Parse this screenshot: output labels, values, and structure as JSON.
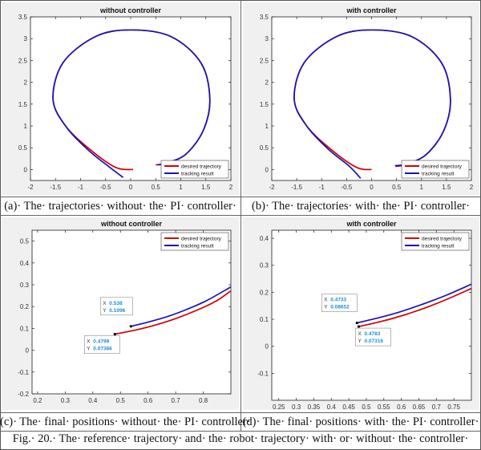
{
  "colors": {
    "desired": "#d40000",
    "tracking": "#1515b8",
    "datatip_value": "#1e8fd6",
    "axes_bg": "#ffffff",
    "figure_bg": "#f0f0f0"
  },
  "chart_data": [
    {
      "type": "line",
      "title": "without controller",
      "xlabel": "",
      "ylabel": "",
      "xlim": [
        -2,
        2
      ],
      "ylim": [
        -0.25,
        3.5
      ],
      "xticks": [
        "-2",
        "-1.5",
        "-1",
        "-0.5",
        "0",
        "0.5",
        "1",
        "1.5",
        "2"
      ],
      "yticks": [
        "0",
        "0.5",
        "1",
        "1.5",
        "2",
        "2.5",
        "3",
        "3.5"
      ],
      "grid": false,
      "legend": "bottom-right",
      "series": [
        {
          "name": "desired trajectory",
          "color": "#d40000",
          "x": [
            0.048,
            -0.3,
            -0.8,
            -1.3,
            -1.55,
            -1.35,
            -0.7,
            0.0,
            0.8,
            1.4,
            1.58,
            1.45,
            1.1,
            0.7,
            0.5
          ],
          "y": [
            0.0,
            0.05,
            0.45,
            1.0,
            1.62,
            2.45,
            3.05,
            3.2,
            3.05,
            2.45,
            1.62,
            0.9,
            0.35,
            0.14,
            0.11
          ]
        },
        {
          "name": "tracking result",
          "color": "#1515b8",
          "x": [
            -0.15,
            -0.45,
            -0.85,
            -1.3,
            -1.55,
            -1.35,
            -0.7,
            0.0,
            0.8,
            1.4,
            1.58,
            1.45,
            1.1,
            0.7,
            0.54
          ],
          "y": [
            -0.18,
            0.08,
            0.45,
            1.0,
            1.62,
            2.45,
            3.05,
            3.2,
            3.05,
            2.45,
            1.62,
            0.9,
            0.35,
            0.15,
            0.11
          ]
        }
      ]
    },
    {
      "type": "line",
      "title": "with controller",
      "xlabel": "",
      "ylabel": "",
      "xlim": [
        -2,
        2
      ],
      "ylim": [
        -0.25,
        3.5
      ],
      "xticks": [
        "-2",
        "-1.5",
        "-1",
        "-0.5",
        "0",
        "0.5",
        "1",
        "1.5",
        "2"
      ],
      "yticks": [
        "0",
        "0.5",
        "1",
        "1.5",
        "2",
        "2.5",
        "3",
        "3.5"
      ],
      "grid": false,
      "legend": "bottom-right",
      "series": [
        {
          "name": "desired trajectory",
          "color": "#d40000",
          "x": [
            0.0,
            -0.3,
            -0.8,
            -1.3,
            -1.55,
            -1.35,
            -0.7,
            0.0,
            0.8,
            1.4,
            1.58,
            1.45,
            1.1,
            0.7,
            0.48
          ],
          "y": [
            0.0,
            0.05,
            0.45,
            1.0,
            1.62,
            2.45,
            3.05,
            3.2,
            3.05,
            2.45,
            1.62,
            0.9,
            0.35,
            0.12,
            0.07
          ]
        },
        {
          "name": "tracking result",
          "color": "#1515b8",
          "x": [
            -0.22,
            -0.45,
            -0.85,
            -1.3,
            -1.55,
            -1.35,
            -0.7,
            0.0,
            0.8,
            1.4,
            1.58,
            1.45,
            1.1,
            0.7,
            0.47
          ],
          "y": [
            -0.2,
            0.08,
            0.45,
            1.0,
            1.62,
            2.45,
            3.05,
            3.2,
            3.05,
            2.45,
            1.62,
            0.9,
            0.35,
            0.13,
            0.09
          ]
        }
      ]
    },
    {
      "type": "line",
      "title": "without controller",
      "xlabel": "",
      "ylabel": "",
      "xlim": [
        0.18,
        0.9
      ],
      "ylim": [
        -0.2,
        0.55
      ],
      "xticks": [
        "0.2",
        "0.3",
        "0.4",
        "0.5",
        "0.6",
        "0.7",
        "0.8"
      ],
      "yticks": [
        "-0.2",
        "-0.1",
        "0",
        "0.1",
        "0.2",
        "0.3",
        "0.4",
        "0.5"
      ],
      "grid": false,
      "legend": "top-right",
      "series": [
        {
          "name": "desired trajectory",
          "color": "#d40000",
          "x": [
            0.4799,
            0.55,
            0.62,
            0.7,
            0.78,
            0.85,
            0.9
          ],
          "y": [
            0.07366,
            0.091,
            0.113,
            0.145,
            0.185,
            0.228,
            0.272
          ]
        },
        {
          "name": "tracking result",
          "color": "#1515b8",
          "x": [
            0.538,
            0.6,
            0.67,
            0.74,
            0.81,
            0.9
          ],
          "y": [
            0.1096,
            0.129,
            0.154,
            0.187,
            0.226,
            0.29
          ]
        }
      ],
      "annotations": [
        {
          "label_x": "X",
          "x": "0.538",
          "label_y": "Y",
          "y": "0.1096",
          "px": 0.538,
          "py": 0.1096
        },
        {
          "label_x": "X",
          "x": "0.4799",
          "label_y": "Y",
          "y": "0.07366",
          "px": 0.4799,
          "py": 0.07366
        }
      ]
    },
    {
      "type": "line",
      "title": "with controller",
      "xlabel": "",
      "ylabel": "",
      "xlim": [
        0.23,
        0.8
      ],
      "ylim": [
        -0.2,
        0.43
      ],
      "xticks": [
        "0.25",
        "0.3",
        "0.35",
        "0.4",
        "0.45",
        "0.5",
        "0.55",
        "0.6",
        "0.65",
        "0.7",
        "0.75"
      ],
      "yticks": [
        "-0.1",
        "0",
        "0.1",
        "0.2",
        "0.3",
        "0.4"
      ],
      "grid": false,
      "legend": "top-right",
      "series": [
        {
          "name": "desired trajectory",
          "color": "#d40000",
          "x": [
            0.4783,
            0.53,
            0.58,
            0.63,
            0.68,
            0.73,
            0.8
          ],
          "y": [
            0.07316,
            0.088,
            0.105,
            0.125,
            0.148,
            0.174,
            0.214
          ]
        },
        {
          "name": "tracking result",
          "color": "#1515b8",
          "x": [
            0.4733,
            0.53,
            0.58,
            0.63,
            0.68,
            0.73,
            0.8
          ],
          "y": [
            0.08652,
            0.104,
            0.121,
            0.142,
            0.165,
            0.19,
            0.23
          ]
        }
      ],
      "annotations": [
        {
          "label_x": "X",
          "x": "0.4733",
          "label_y": "Y",
          "y": "0.08652",
          "px": 0.4733,
          "py": 0.08652
        },
        {
          "label_x": "X",
          "x": "0.4783",
          "label_y": "Y",
          "y": "0.07316",
          "px": 0.4783,
          "py": 0.07316
        }
      ]
    }
  ],
  "captions": {
    "a": "(a)· The· trajectories· without· the· PI· controller·",
    "b": "(b)· The· trajectories· with· the· PI· controller·",
    "c": "(c)· The· final· positions· without· the· PI· controller·",
    "d": "(d)· The· final· positions· with· the· PI· controller·",
    "fig": "Fig.· 20.· The· reference· trajectory· and· the· robot· trajectory· with· or· without· the· controller·"
  }
}
